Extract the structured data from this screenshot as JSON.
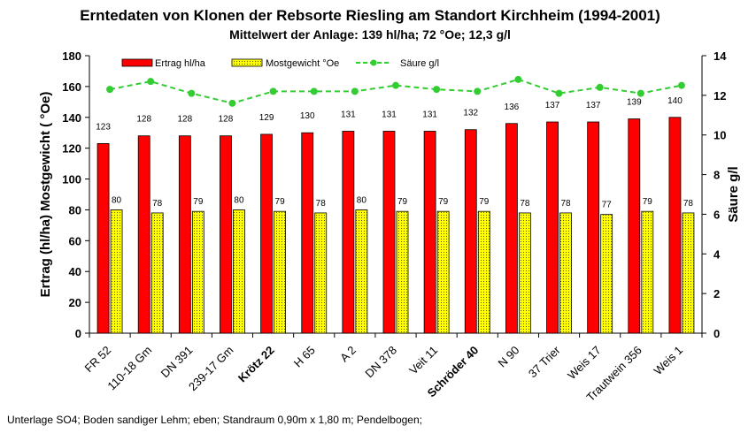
{
  "chart_data": {
    "type": "bar",
    "title": "Erntedaten von Klonen der Rebsorte Riesling am Standort Kirchheim (1994-2001)",
    "subtitle": "Mittelwert der Anlage: 139 hl/ha; 72 °Oe; 12,3 g/l",
    "ylabel_left": "Ertrag (hl/ha)  Mostgewicht ( °Oe)",
    "ylabel_right": "Säure g/l",
    "footnote": "Unterlage SO4; Boden sandiger Lehm; eben; Standraum 0,90m x 1,80 m; Pendelbogen;",
    "ylim_left": [
      0,
      180
    ],
    "yticks_left": [
      0,
      20,
      40,
      60,
      80,
      100,
      120,
      140,
      160,
      180
    ],
    "ylim_right": [
      0,
      14
    ],
    "yticks_right": [
      0,
      2,
      4,
      6,
      8,
      10,
      12,
      14
    ],
    "categories": [
      "FR 52",
      "110-18 Gm",
      "DN 391",
      "239-17 Gm",
      "Krötz 22",
      "H 65",
      "A 2",
      "DN 378",
      "Veit 11",
      "Schröder 40",
      "N 90",
      "37 Trier",
      "Weis 17",
      "Trautwein 356",
      "Weis 1"
    ],
    "bold_categories": [
      "Krötz 22",
      "Schröder 40"
    ],
    "series": [
      {
        "name": "Ertrag hl/ha",
        "type": "bar",
        "axis": "left",
        "color": "#ff0000",
        "values": [
          123,
          128,
          128,
          128,
          129,
          130,
          131,
          131,
          131,
          132,
          136,
          137,
          137,
          139,
          140
        ]
      },
      {
        "name": "Mostgewicht °Oe",
        "type": "bar",
        "axis": "left",
        "color": "#ffff00",
        "pattern": "dotted",
        "values": [
          80,
          78,
          79,
          80,
          79,
          78,
          80,
          79,
          79,
          79,
          78,
          78,
          77,
          79,
          78
        ]
      },
      {
        "name": "Säure g/l",
        "type": "line",
        "axis": "right",
        "color": "#33cc33",
        "line_style": "dashed",
        "values": [
          12.3,
          12.7,
          12.1,
          11.6,
          12.2,
          12.2,
          12.2,
          12.5,
          12.3,
          12.2,
          12.8,
          12.1,
          12.4,
          12.1,
          12.5
        ]
      }
    ],
    "legend_position": "top"
  }
}
